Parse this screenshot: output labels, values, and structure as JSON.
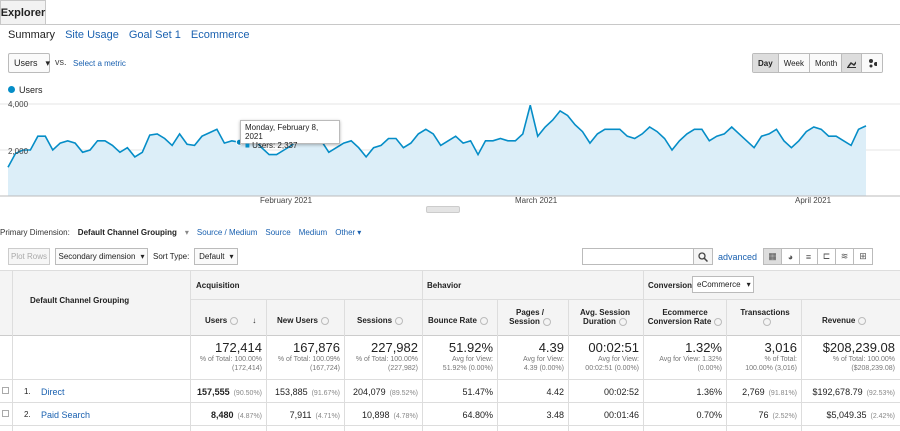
{
  "explorer_tab": "Explorer",
  "subtabs": [
    "Summary",
    "Site Usage",
    "Goal Set 1",
    "Ecommerce"
  ],
  "metric_select": "Users",
  "vs_label": "vs.",
  "select_metric": "Select a metric",
  "granularity": [
    "Day",
    "Week",
    "Month"
  ],
  "legend_label": "Users",
  "y_ticks": [
    "4,000",
    "2,000"
  ],
  "x_ticks": [
    "February 2021",
    "March 2021",
    "April 2021"
  ],
  "tooltip": {
    "date": "Monday, February 8, 2021",
    "value": "Users: 2,337"
  },
  "colors": {
    "accent": "#058dc7",
    "fill": "#dceef8",
    "link": "#1a61b0"
  },
  "chart_data": {
    "type": "area",
    "series": [
      {
        "name": "Users",
        "values": [
          1250,
          1850,
          2000,
          2000,
          2600,
          2600,
          2000,
          2300,
          2400,
          2300,
          1900,
          2000,
          2400,
          2400,
          2200,
          1900,
          2100,
          1700,
          1900,
          2650,
          2700,
          2500,
          2200,
          2700,
          2250,
          2200,
          2600,
          2750,
          2900,
          2300,
          2400,
          2337,
          2600,
          2500,
          2100,
          1800,
          1800,
          2000,
          2200,
          2500,
          2600,
          2400,
          2400,
          1900,
          2100,
          2300,
          2400,
          2100,
          1700,
          2100,
          2200,
          2500,
          2500,
          2100,
          2300,
          2700,
          2900,
          2700,
          2200,
          2400,
          2600,
          2300,
          2400,
          1800,
          2400,
          2400,
          2500,
          2400,
          2400,
          2700,
          3950,
          2600,
          3000,
          3300,
          3700,
          3500,
          3100,
          2800,
          2300,
          2700,
          2900,
          2900,
          2900,
          2600,
          2500,
          2700,
          3000,
          2800,
          2500,
          2000,
          2400,
          2700,
          2900,
          2900,
          2400,
          2600,
          2700,
          3000,
          2700,
          2400,
          2100,
          2600,
          2700,
          2900,
          2400,
          2100,
          2400,
          2800,
          3000,
          2900,
          2600,
          2600,
          2400,
          2200,
          2900,
          3050
        ]
      }
    ],
    "ylim": [
      0,
      4000
    ],
    "grid": true
  },
  "primary_dimension": {
    "label": "Primary Dimension:",
    "current": "Default Channel Grouping",
    "options": [
      "Source / Medium",
      "Source",
      "Medium",
      "Other"
    ]
  },
  "controls": {
    "plot_rows": "Plot Rows",
    "secondary_dimension": "Secondary dimension",
    "sort_type_label": "Sort Type:",
    "sort_type": "Default",
    "advanced": "advanced"
  },
  "table": {
    "dim_header": "Default Channel Grouping",
    "groups": {
      "acquisition": "Acquisition",
      "behavior": "Behavior",
      "conversions": "Conversions",
      "conversions_select": "eCommerce"
    },
    "columns": [
      "Users",
      "New Users",
      "Sessions",
      "Bounce Rate",
      "Pages / Session",
      "Avg. Session Duration",
      "Ecommerce Conversion Rate",
      "Transactions",
      "Revenue"
    ],
    "totals": [
      {
        "value": "172,414",
        "sub1": "% of Total: 100.00%",
        "sub2": "(172,414)"
      },
      {
        "value": "167,876",
        "sub1": "% of Total: 100.09%",
        "sub2": "(167,724)"
      },
      {
        "value": "227,982",
        "sub1": "% of Total: 100.00%",
        "sub2": "(227,982)"
      },
      {
        "value": "51.92%",
        "sub1": "Avg for View:",
        "sub2": "51.92% (0.00%)"
      },
      {
        "value": "4.39",
        "sub1": "Avg for View:",
        "sub2": "4.39 (0.00%)"
      },
      {
        "value": "00:02:51",
        "sub1": "Avg for View:",
        "sub2": "00:02:51 (0.00%)"
      },
      {
        "value": "1.32%",
        "sub1": "Avg for View: 1.32%",
        "sub2": "(0.00%)"
      },
      {
        "value": "3,016",
        "sub1": "% of Total:",
        "sub2": "100.00% (3,016)"
      },
      {
        "value": "$208,239.08",
        "sub1": "% of Total: 100.00%",
        "sub2": "($208,239.08)"
      }
    ],
    "rows": [
      {
        "idx": "1.",
        "name": "Direct",
        "users": "157,555",
        "users_pct": "(90.50%)",
        "new_users": "153,885",
        "new_users_pct": "(91.67%)",
        "sessions": "204,079",
        "sessions_pct": "(89.52%)",
        "bounce": "51.47%",
        "pages": "4.42",
        "duration": "00:02:52",
        "conv": "1.36%",
        "trans": "2,769",
        "trans_pct": "(91.81%)",
        "revenue": "$192,678.79",
        "revenue_pct": "(92.53%)"
      },
      {
        "idx": "2.",
        "name": "Paid Search",
        "users": "8,480",
        "users_pct": "(4.87%)",
        "new_users": "7,911",
        "new_users_pct": "(4.71%)",
        "sessions": "10,898",
        "sessions_pct": "(4.78%)",
        "bounce": "64.80%",
        "pages": "3.48",
        "duration": "00:01:46",
        "conv": "0.70%",
        "trans": "76",
        "trans_pct": "(2.52%)",
        "revenue": "$5,049.35",
        "revenue_pct": "(2.42%)"
      }
    ]
  }
}
